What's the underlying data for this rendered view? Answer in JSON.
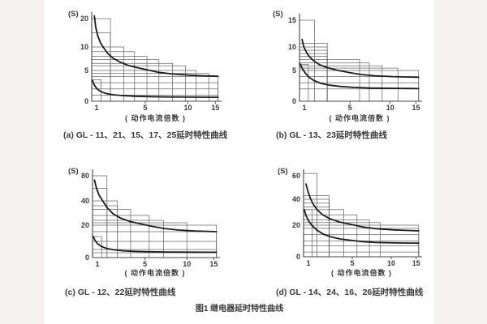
{
  "figure": {
    "caption": "图1  继电器延时特性曲线"
  },
  "colors": {
    "paper": "#ffffff",
    "margin_bg": "#f6f3f1",
    "box_line": "#5f5f5f",
    "axis_line": "#444444",
    "curve": "#1c1c1c",
    "text": "#3a3a3a"
  },
  "chart_data": [
    {
      "id": "a",
      "type": "line",
      "caption": "(a) GL - 11、21、15、17、25延时特性曲线",
      "ylabel": "(S)",
      "xlabel": "( 动作电流倍数 )",
      "x_range": [
        1,
        15.5
      ],
      "y_range": [
        0,
        20
      ],
      "xticks": [
        {
          "v": 1,
          "f": 0,
          "label": "1"
        },
        {
          "v": 5,
          "f": 0.42,
          "label": "5"
        },
        {
          "v": 10,
          "f": 0.755,
          "label": "10"
        },
        {
          "v": 15,
          "f": 0.97,
          "label": "15"
        }
      ],
      "yticks": [
        {
          "v": 0,
          "f": 0,
          "label": "0"
        },
        {
          "v": 5,
          "f": 0.373,
          "label": "5"
        },
        {
          "v": 10,
          "f": 0.657,
          "label": "10"
        },
        {
          "v": 20,
          "f": 1,
          "label": "20"
        }
      ],
      "tolerance_boxes": [
        [
          2.4,
          20
        ],
        [
          2.4,
          15
        ],
        [
          3.4,
          10
        ],
        [
          4.2,
          9
        ],
        [
          5.2,
          8
        ],
        [
          6.6,
          7.3
        ],
        [
          8.2,
          6.5
        ],
        [
          9.7,
          6
        ],
        [
          11.5,
          5
        ],
        [
          13.8,
          4.5
        ],
        [
          15.5,
          4
        ],
        [
          15.5,
          3
        ],
        [
          15.5,
          2
        ],
        [
          15.5,
          1
        ],
        [
          1.7,
          3.5
        ]
      ],
      "series": [
        {
          "name": "upper-limit-curve",
          "points": [
            [
              1.2,
              21
            ],
            [
              1.3,
              17
            ],
            [
              1.45,
              14
            ],
            [
              1.65,
              11.5
            ],
            [
              1.9,
              9.8
            ],
            [
              2.2,
              8.6
            ],
            [
              2.6,
              7.6
            ],
            [
              3.1,
              6.8
            ],
            [
              3.7,
              6.1
            ],
            [
              4.4,
              5.6
            ],
            [
              5.3,
              5.1
            ],
            [
              6.5,
              4.7
            ],
            [
              8,
              4.45
            ],
            [
              10,
              4.25
            ],
            [
              12,
              4.15
            ],
            [
              15.5,
              4.05
            ]
          ]
        },
        {
          "name": "lower-limit-curve",
          "points": [
            [
              1.05,
              3.4
            ],
            [
              1.2,
              2.6
            ],
            [
              1.4,
              2.0
            ],
            [
              1.7,
              1.55
            ],
            [
              2.1,
              1.25
            ],
            [
              2.6,
              1.05
            ],
            [
              3.3,
              0.92
            ],
            [
              4.2,
              0.82
            ],
            [
              5.5,
              0.75
            ],
            [
              7.5,
              0.7
            ],
            [
              10,
              0.67
            ],
            [
              15.5,
              0.65
            ]
          ]
        }
      ]
    },
    {
      "id": "b",
      "type": "line",
      "caption": "(b) GL - 13、23延时特性曲线",
      "ylabel": "(S)",
      "xlabel": "( 动作电流倍数 )",
      "x_range": [
        1,
        15.5
      ],
      "y_range": [
        0,
        15
      ],
      "xticks": [
        {
          "v": 1,
          "f": 0,
          "label": "1"
        },
        {
          "v": 5,
          "f": 0.42,
          "label": "5"
        },
        {
          "v": 10,
          "f": 0.755,
          "label": "10"
        },
        {
          "v": 15,
          "f": 0.97,
          "label": "15"
        }
      ],
      "yticks": [
        {
          "v": 0,
          "f": 0,
          "label": "0"
        },
        {
          "v": 5,
          "f": 0.38,
          "label": "5"
        },
        {
          "v": 10,
          "f": 0.67,
          "label": "10"
        },
        {
          "v": 15,
          "f": 1,
          "label": "15"
        }
      ],
      "tolerance_boxes": [
        [
          2.2,
          15
        ],
        [
          3.2,
          10.7
        ],
        [
          3.2,
          10
        ],
        [
          3.2,
          9.3
        ],
        [
          3.2,
          8.6
        ],
        [
          3.2,
          8
        ],
        [
          6.2,
          7.3
        ],
        [
          7.4,
          6.6
        ],
        [
          9,
          6
        ],
        [
          11.5,
          5.5
        ],
        [
          15.5,
          5
        ],
        [
          15.5,
          4
        ],
        [
          15.5,
          3
        ],
        [
          15.5,
          2
        ],
        [
          1.7,
          6.3
        ]
      ],
      "series": [
        {
          "name": "upper-limit-curve",
          "points": [
            [
              1.2,
              11.4
            ],
            [
              1.35,
              10
            ],
            [
              1.55,
              8.9
            ],
            [
              1.8,
              7.9
            ],
            [
              2.15,
              7.0
            ],
            [
              2.6,
              6.2
            ],
            [
              3.2,
              5.6
            ],
            [
              4,
              5.05
            ],
            [
              5,
              4.65
            ],
            [
              6.3,
              4.35
            ],
            [
              8,
              4.15
            ],
            [
              10.5,
              4.0
            ],
            [
              15.5,
              3.9
            ]
          ]
        },
        {
          "name": "lower-limit-curve",
          "points": [
            [
              1.05,
              6.4
            ],
            [
              1.2,
              5.5
            ],
            [
              1.45,
              4.6
            ],
            [
              1.75,
              3.9
            ],
            [
              2.15,
              3.35
            ],
            [
              2.7,
              2.9
            ],
            [
              3.4,
              2.6
            ],
            [
              4.3,
              2.4
            ],
            [
              5.5,
              2.25
            ],
            [
              7.5,
              2.15
            ],
            [
              10,
              2.1
            ],
            [
              15.5,
              2.05
            ]
          ]
        }
      ]
    },
    {
      "id": "c",
      "type": "line",
      "caption": "(c) GL - 12、22延时特性曲线",
      "ylabel": "(S)",
      "xlabel": "( 动作电流倍数 )",
      "x_range": [
        1,
        15.5
      ],
      "y_range": [
        0,
        80
      ],
      "xticks": [
        {
          "v": 1,
          "f": 0,
          "label": "1"
        },
        {
          "v": 5,
          "f": 0.42,
          "label": "5"
        },
        {
          "v": 10,
          "f": 0.755,
          "label": "10"
        },
        {
          "v": 15,
          "f": 0.97,
          "label": "15"
        }
      ],
      "yticks": [
        {
          "v": 0,
          "f": 0,
          "label": "0"
        },
        {
          "v": 20,
          "f": 0.396,
          "label": "20"
        },
        {
          "v": 40,
          "f": 0.693,
          "label": "40"
        },
        {
          "v": 80,
          "f": 1,
          "label": "80"
        }
      ],
      "tolerance_boxes": [
        [
          2.1,
          80
        ],
        [
          2.1,
          60
        ],
        [
          2.9,
          40
        ],
        [
          2.9,
          36
        ],
        [
          3.9,
          33
        ],
        [
          5.5,
          28
        ],
        [
          7.2,
          24
        ],
        [
          10,
          22
        ],
        [
          15.5,
          20
        ],
        [
          15.5,
          16
        ],
        [
          15.5,
          10
        ],
        [
          15.5,
          5
        ],
        [
          15.5,
          3
        ],
        [
          1.7,
          13
        ]
      ],
      "series": [
        {
          "name": "upper-limit-curve",
          "points": [
            [
              1.15,
              73
            ],
            [
              1.3,
              60
            ],
            [
              1.5,
              49
            ],
            [
              1.75,
              41
            ],
            [
              2.1,
              34.5
            ],
            [
              2.55,
              29.5
            ],
            [
              3.1,
              26
            ],
            [
              3.8,
              23.2
            ],
            [
              4.7,
              21
            ],
            [
              5.8,
              19.3
            ],
            [
              7.2,
              18
            ],
            [
              9,
              17
            ],
            [
              11.5,
              16.4
            ],
            [
              15.5,
              16
            ]
          ]
        },
        {
          "name": "lower-limit-curve",
          "points": [
            [
              1.05,
              13
            ],
            [
              1.2,
              10.5
            ],
            [
              1.4,
              8.4
            ],
            [
              1.7,
              6.8
            ],
            [
              2.1,
              5.6
            ],
            [
              2.6,
              4.8
            ],
            [
              3.3,
              4.2
            ],
            [
              4.2,
              3.85
            ],
            [
              5.5,
              3.6
            ],
            [
              7.5,
              3.45
            ],
            [
              10.5,
              3.35
            ],
            [
              15.5,
              3.3
            ]
          ]
        }
      ]
    },
    {
      "id": "d",
      "type": "line",
      "caption": "(d) GL - 14、24、16、26延时特性曲线",
      "ylabel": "(S)",
      "xlabel": "( 动作电流倍数 )",
      "x_range": [
        1,
        15.5
      ],
      "y_range": [
        0,
        60
      ],
      "xticks": [
        {
          "v": 1,
          "f": 0,
          "label": "1"
        },
        {
          "v": 5,
          "f": 0.42,
          "label": "5"
        },
        {
          "v": 10,
          "f": 0.755,
          "label": "10"
        },
        {
          "v": 15,
          "f": 0.97,
          "label": "15"
        }
      ],
      "yticks": [
        {
          "v": 0,
          "f": 0,
          "label": "0"
        },
        {
          "v": 20,
          "f": 0.39,
          "label": "20"
        },
        {
          "v": 40,
          "f": 0.71,
          "label": "40"
        },
        {
          "v": 60,
          "f": 1,
          "label": "60"
        }
      ],
      "tolerance_boxes": [
        [
          2.1,
          62
        ],
        [
          3.1,
          43
        ],
        [
          3.1,
          40
        ],
        [
          3.1,
          37
        ],
        [
          3.1,
          34
        ],
        [
          4.3,
          32
        ],
        [
          5.6,
          28
        ],
        [
          7.2,
          24
        ],
        [
          8.6,
          22
        ],
        [
          15.5,
          20
        ],
        [
          15.5,
          18
        ],
        [
          15.5,
          14
        ],
        [
          15.5,
          10
        ],
        [
          15.5,
          7
        ],
        [
          15.5,
          3
        ],
        [
          1.7,
          32
        ]
      ],
      "series": [
        {
          "name": "upper-limit-curve",
          "points": [
            [
              1.2,
              53
            ],
            [
              1.35,
              47
            ],
            [
              1.55,
              41
            ],
            [
              1.8,
              36
            ],
            [
              2.15,
              31.5
            ],
            [
              2.6,
              27.8
            ],
            [
              3.2,
              24.8
            ],
            [
              4,
              22.3
            ],
            [
              5,
              20.4
            ],
            [
              6.3,
              18.9
            ],
            [
              8,
              17.8
            ],
            [
              10.5,
              17
            ],
            [
              15.5,
              16.4
            ]
          ]
        },
        {
          "name": "lower-limit-curve",
          "points": [
            [
              1.05,
              32
            ],
            [
              1.2,
              27.5
            ],
            [
              1.4,
              23.5
            ],
            [
              1.7,
              19.8
            ],
            [
              2.1,
              16.8
            ],
            [
              2.6,
              14.4
            ],
            [
              3.2,
              12.7
            ],
            [
              4,
              11.3
            ],
            [
              5,
              10.3
            ],
            [
              6.3,
              9.6
            ],
            [
              8,
              9.1
            ],
            [
              10.5,
              8.8
            ],
            [
              15.5,
              8.6
            ]
          ]
        }
      ]
    }
  ]
}
